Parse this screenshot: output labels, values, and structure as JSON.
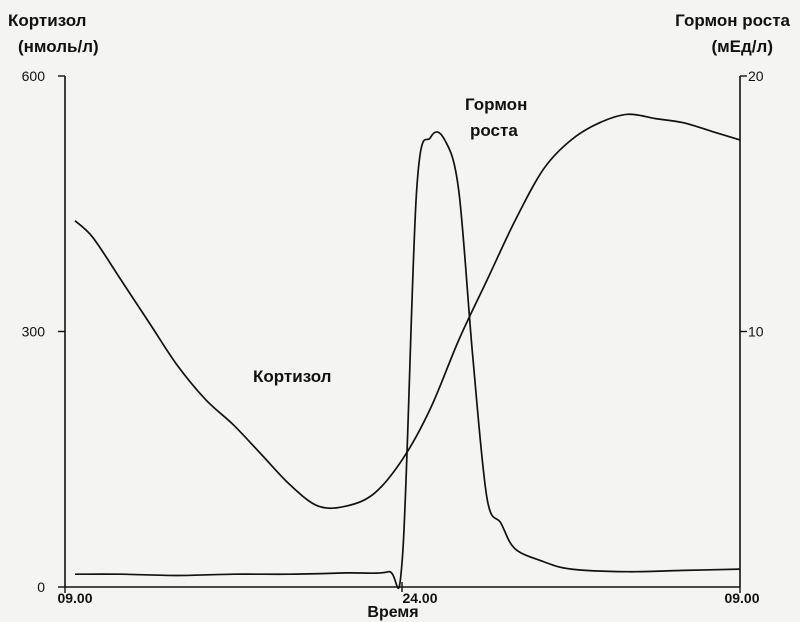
{
  "chart_data": {
    "type": "line",
    "title": "",
    "xlabel": "Время",
    "x_ticks": [
      "09.00",
      "24.00",
      "09.00"
    ],
    "left_axis": {
      "label_line1": "Кортизол",
      "label_line2": "(нмоль/л)",
      "ylim": [
        0,
        600
      ],
      "ticks": [
        0,
        300,
        600
      ]
    },
    "right_axis": {
      "label_line1": "Гормон роста",
      "label_line2": "(мЕд/л)",
      "ylim": [
        0,
        20
      ],
      "ticks": [
        10,
        20
      ]
    },
    "x_hours": [
      0,
      24
    ],
    "grid": false,
    "legend": "none",
    "series": [
      {
        "name": "Кортизол",
        "axis": "left",
        "x": [
          0,
          1,
          2,
          3,
          4,
          5,
          6,
          7,
          8,
          9,
          10,
          11,
          12,
          13,
          14,
          15,
          16,
          17,
          18,
          19,
          20,
          21,
          22,
          23,
          24
        ],
        "y": [
          430,
          410,
          360,
          310,
          260,
          220,
          190,
          155,
          120,
          95,
          95,
          110,
          150,
          210,
          290,
          360,
          430,
          490,
          525,
          545,
          555,
          550,
          545,
          535,
          525
        ]
      },
      {
        "name": "Гормон роста",
        "axis": "right",
        "x": [
          0,
          2,
          4,
          6,
          8,
          10,
          11.5,
          12,
          12.5,
          13,
          13.5,
          14,
          14.5,
          15,
          15.5,
          16,
          17,
          18,
          20,
          22,
          24
        ],
        "y": [
          0.5,
          0.5,
          0.45,
          0.5,
          0.5,
          0.55,
          0.6,
          1.2,
          15.5,
          17.6,
          17.5,
          15.5,
          9,
          3.5,
          2.5,
          1.5,
          1.0,
          0.7,
          0.6,
          0.65,
          0.7
        ]
      }
    ],
    "annotations": [
      {
        "series": "Кортизол",
        "text": "Кортизол"
      },
      {
        "series": "Гормон роста",
        "text_line1": "Гормон",
        "text_line2": "роста"
      }
    ]
  }
}
